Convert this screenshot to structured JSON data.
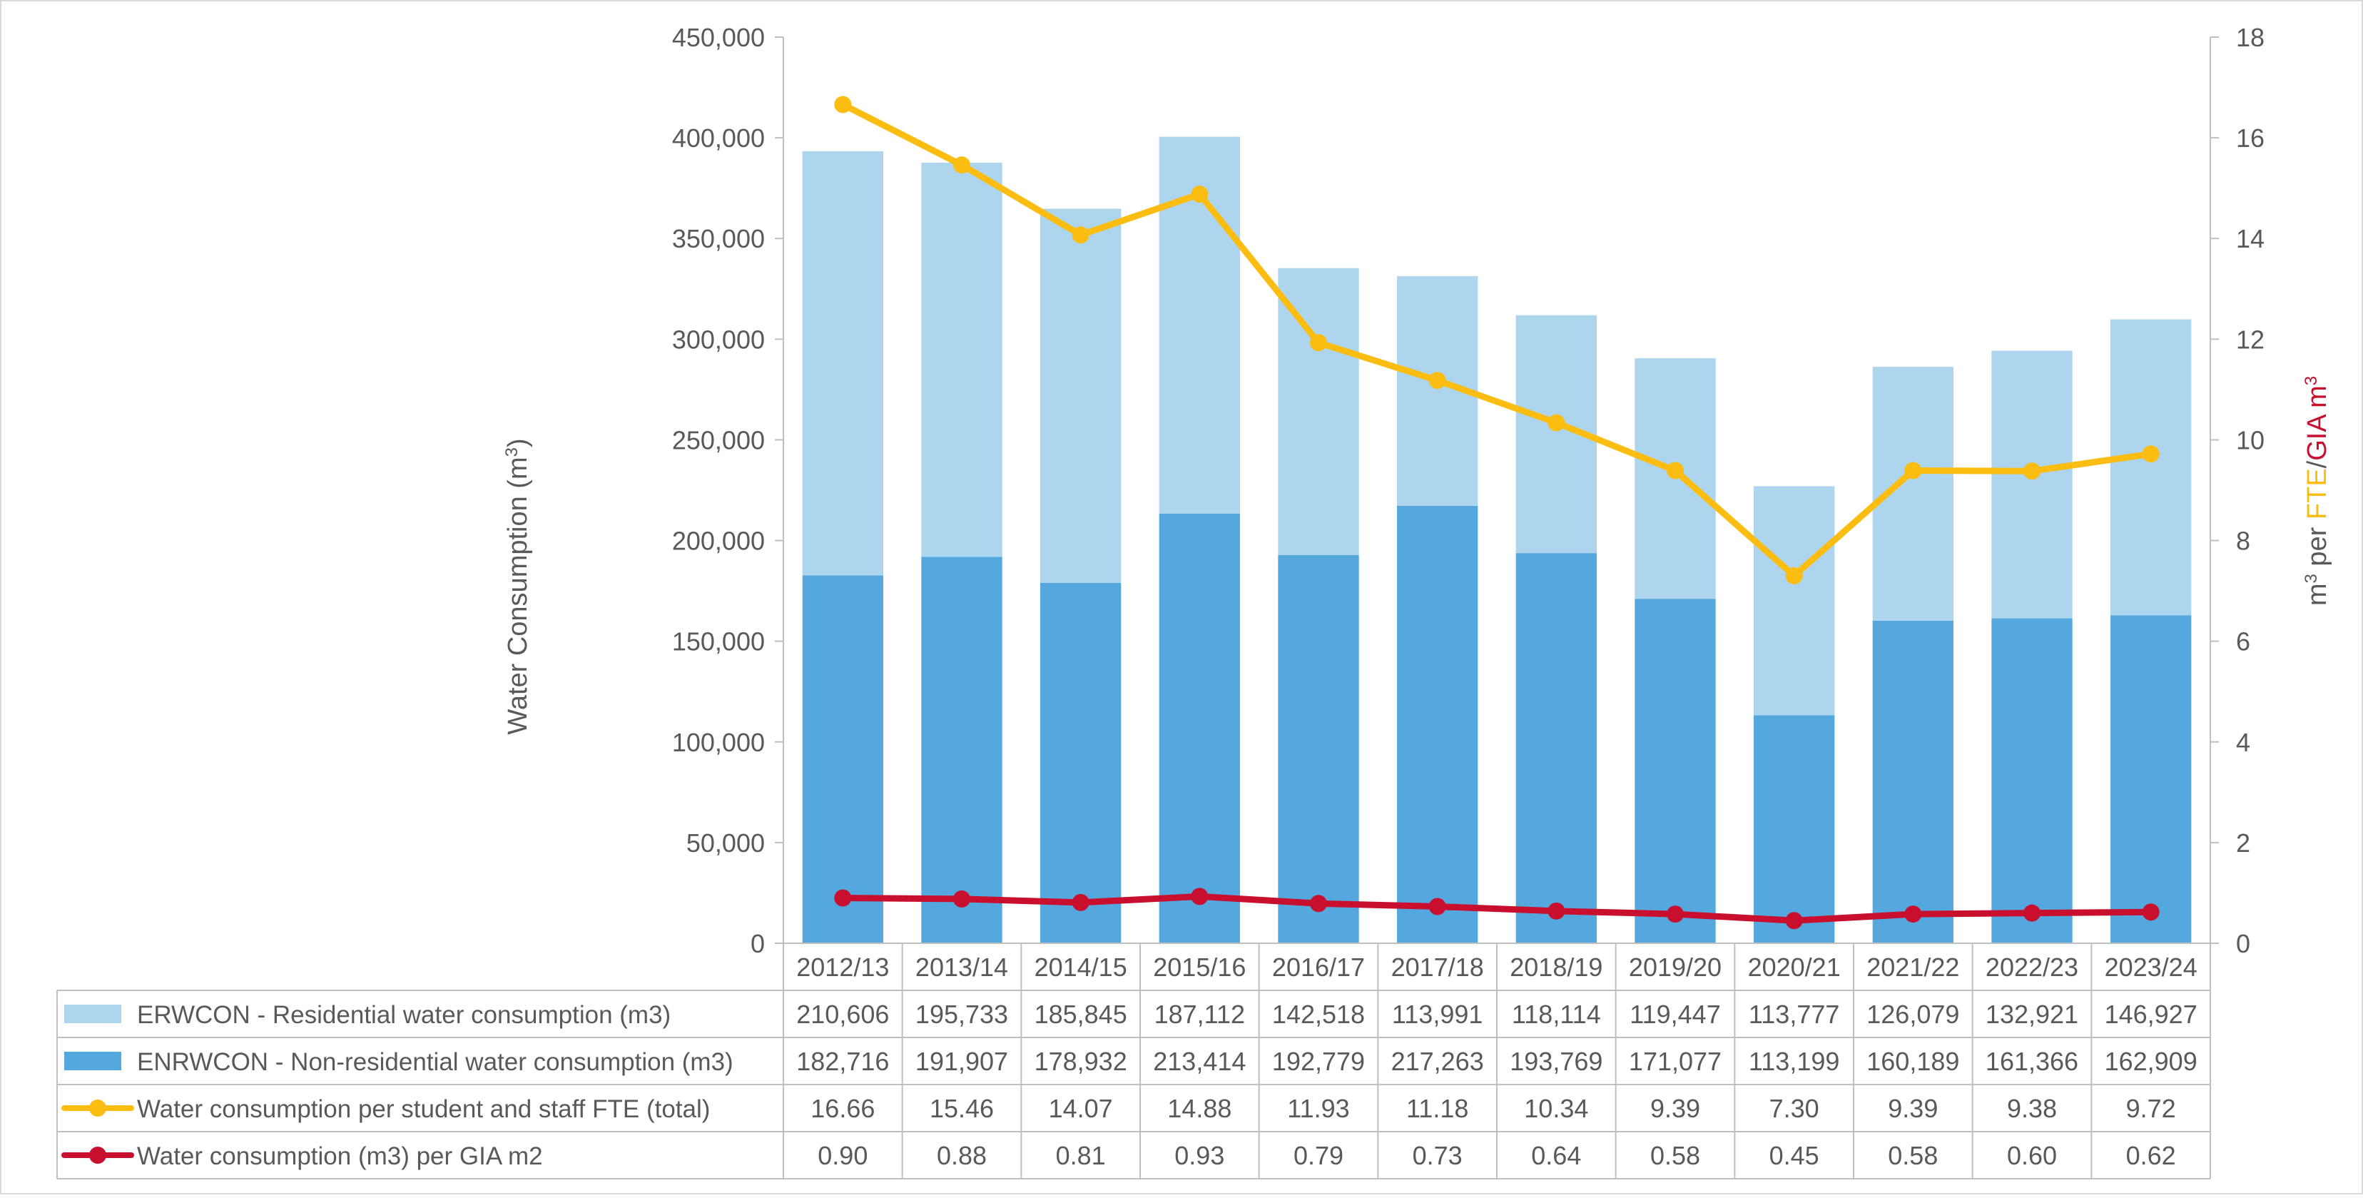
{
  "chart_data": {
    "type": "bar",
    "stacked": true,
    "categories": [
      "2012/13",
      "2013/14",
      "2014/15",
      "2015/16",
      "2016/17",
      "2017/18",
      "2018/19",
      "2019/20",
      "2020/21",
      "2021/22",
      "2022/23",
      "2023/24"
    ],
    "left_axis": {
      "label_main": "Water Consumption (m",
      "label_sup": "3",
      "label_end": ")",
      "ylim": [
        0,
        450000
      ],
      "ticks": [
        "0",
        "50,000",
        "100,000",
        "150,000",
        "200,000",
        "250,000",
        "300,000",
        "350,000",
        "400,000",
        "450,000"
      ]
    },
    "right_axis": {
      "label_part1": "m",
      "label_sup1": "3",
      "label_part2": " per ",
      "label_fte": "FTE",
      "label_slash": "/",
      "label_gia": "GIA m",
      "label_sup2": "3",
      "ylim": [
        0,
        18
      ],
      "ticks": [
        "0",
        "2",
        "4",
        "6",
        "8",
        "10",
        "12",
        "14",
        "16",
        "18"
      ]
    },
    "series": [
      {
        "name": "ERWCON - Residential water consumption (m3)",
        "kind": "bar",
        "axis": "left",
        "color": "#ADD5EE",
        "values": [
          210606,
          195733,
          185845,
          187112,
          142518,
          113991,
          118114,
          119447,
          113777,
          126079,
          132921,
          146927
        ],
        "labels": [
          "210,606",
          "195,733",
          "185,845",
          "187,112",
          "142,518",
          "113,991",
          "118,114",
          "119,447",
          "113,777",
          "126,079",
          "132,921",
          "146,927"
        ]
      },
      {
        "name": "ENRWCON - Non-residential water consumption (m3)",
        "kind": "bar",
        "axis": "left",
        "color": "#55A8DE",
        "values": [
          182716,
          191907,
          178932,
          213414,
          192779,
          217263,
          193769,
          171077,
          113199,
          160189,
          161366,
          162909
        ],
        "labels": [
          "182,716",
          "191,907",
          "178,932",
          "213,414",
          "192,779",
          "217,263",
          "193,769",
          "171,077",
          "113,199",
          "160,189",
          "161,366",
          "162,909"
        ]
      },
      {
        "name": "Water consumption per student and staff FTE (total)",
        "kind": "line",
        "axis": "right",
        "color": "#FBBD12",
        "values": [
          16.66,
          15.46,
          14.07,
          14.88,
          11.93,
          11.18,
          10.34,
          9.39,
          7.3,
          9.39,
          9.38,
          9.72
        ],
        "labels": [
          "16.66",
          "15.46",
          "14.07",
          "14.88",
          "11.93",
          "11.18",
          "10.34",
          "9.39",
          "7.30",
          "9.39",
          "9.38",
          "9.72"
        ]
      },
      {
        "name": "Water consumption (m3) per GIA m2",
        "kind": "line",
        "axis": "right",
        "color": "#C8102E",
        "values": [
          0.9,
          0.88,
          0.81,
          0.93,
          0.79,
          0.73,
          0.64,
          0.58,
          0.45,
          0.58,
          0.6,
          0.62
        ],
        "labels": [
          "0.90",
          "0.88",
          "0.81",
          "0.93",
          "0.79",
          "0.73",
          "0.64",
          "0.58",
          "0.45",
          "0.58",
          "0.60",
          "0.62"
        ]
      }
    ],
    "table_row_order": [
      0,
      1,
      2,
      3
    ],
    "grid": false,
    "legend": "data-table-below"
  }
}
